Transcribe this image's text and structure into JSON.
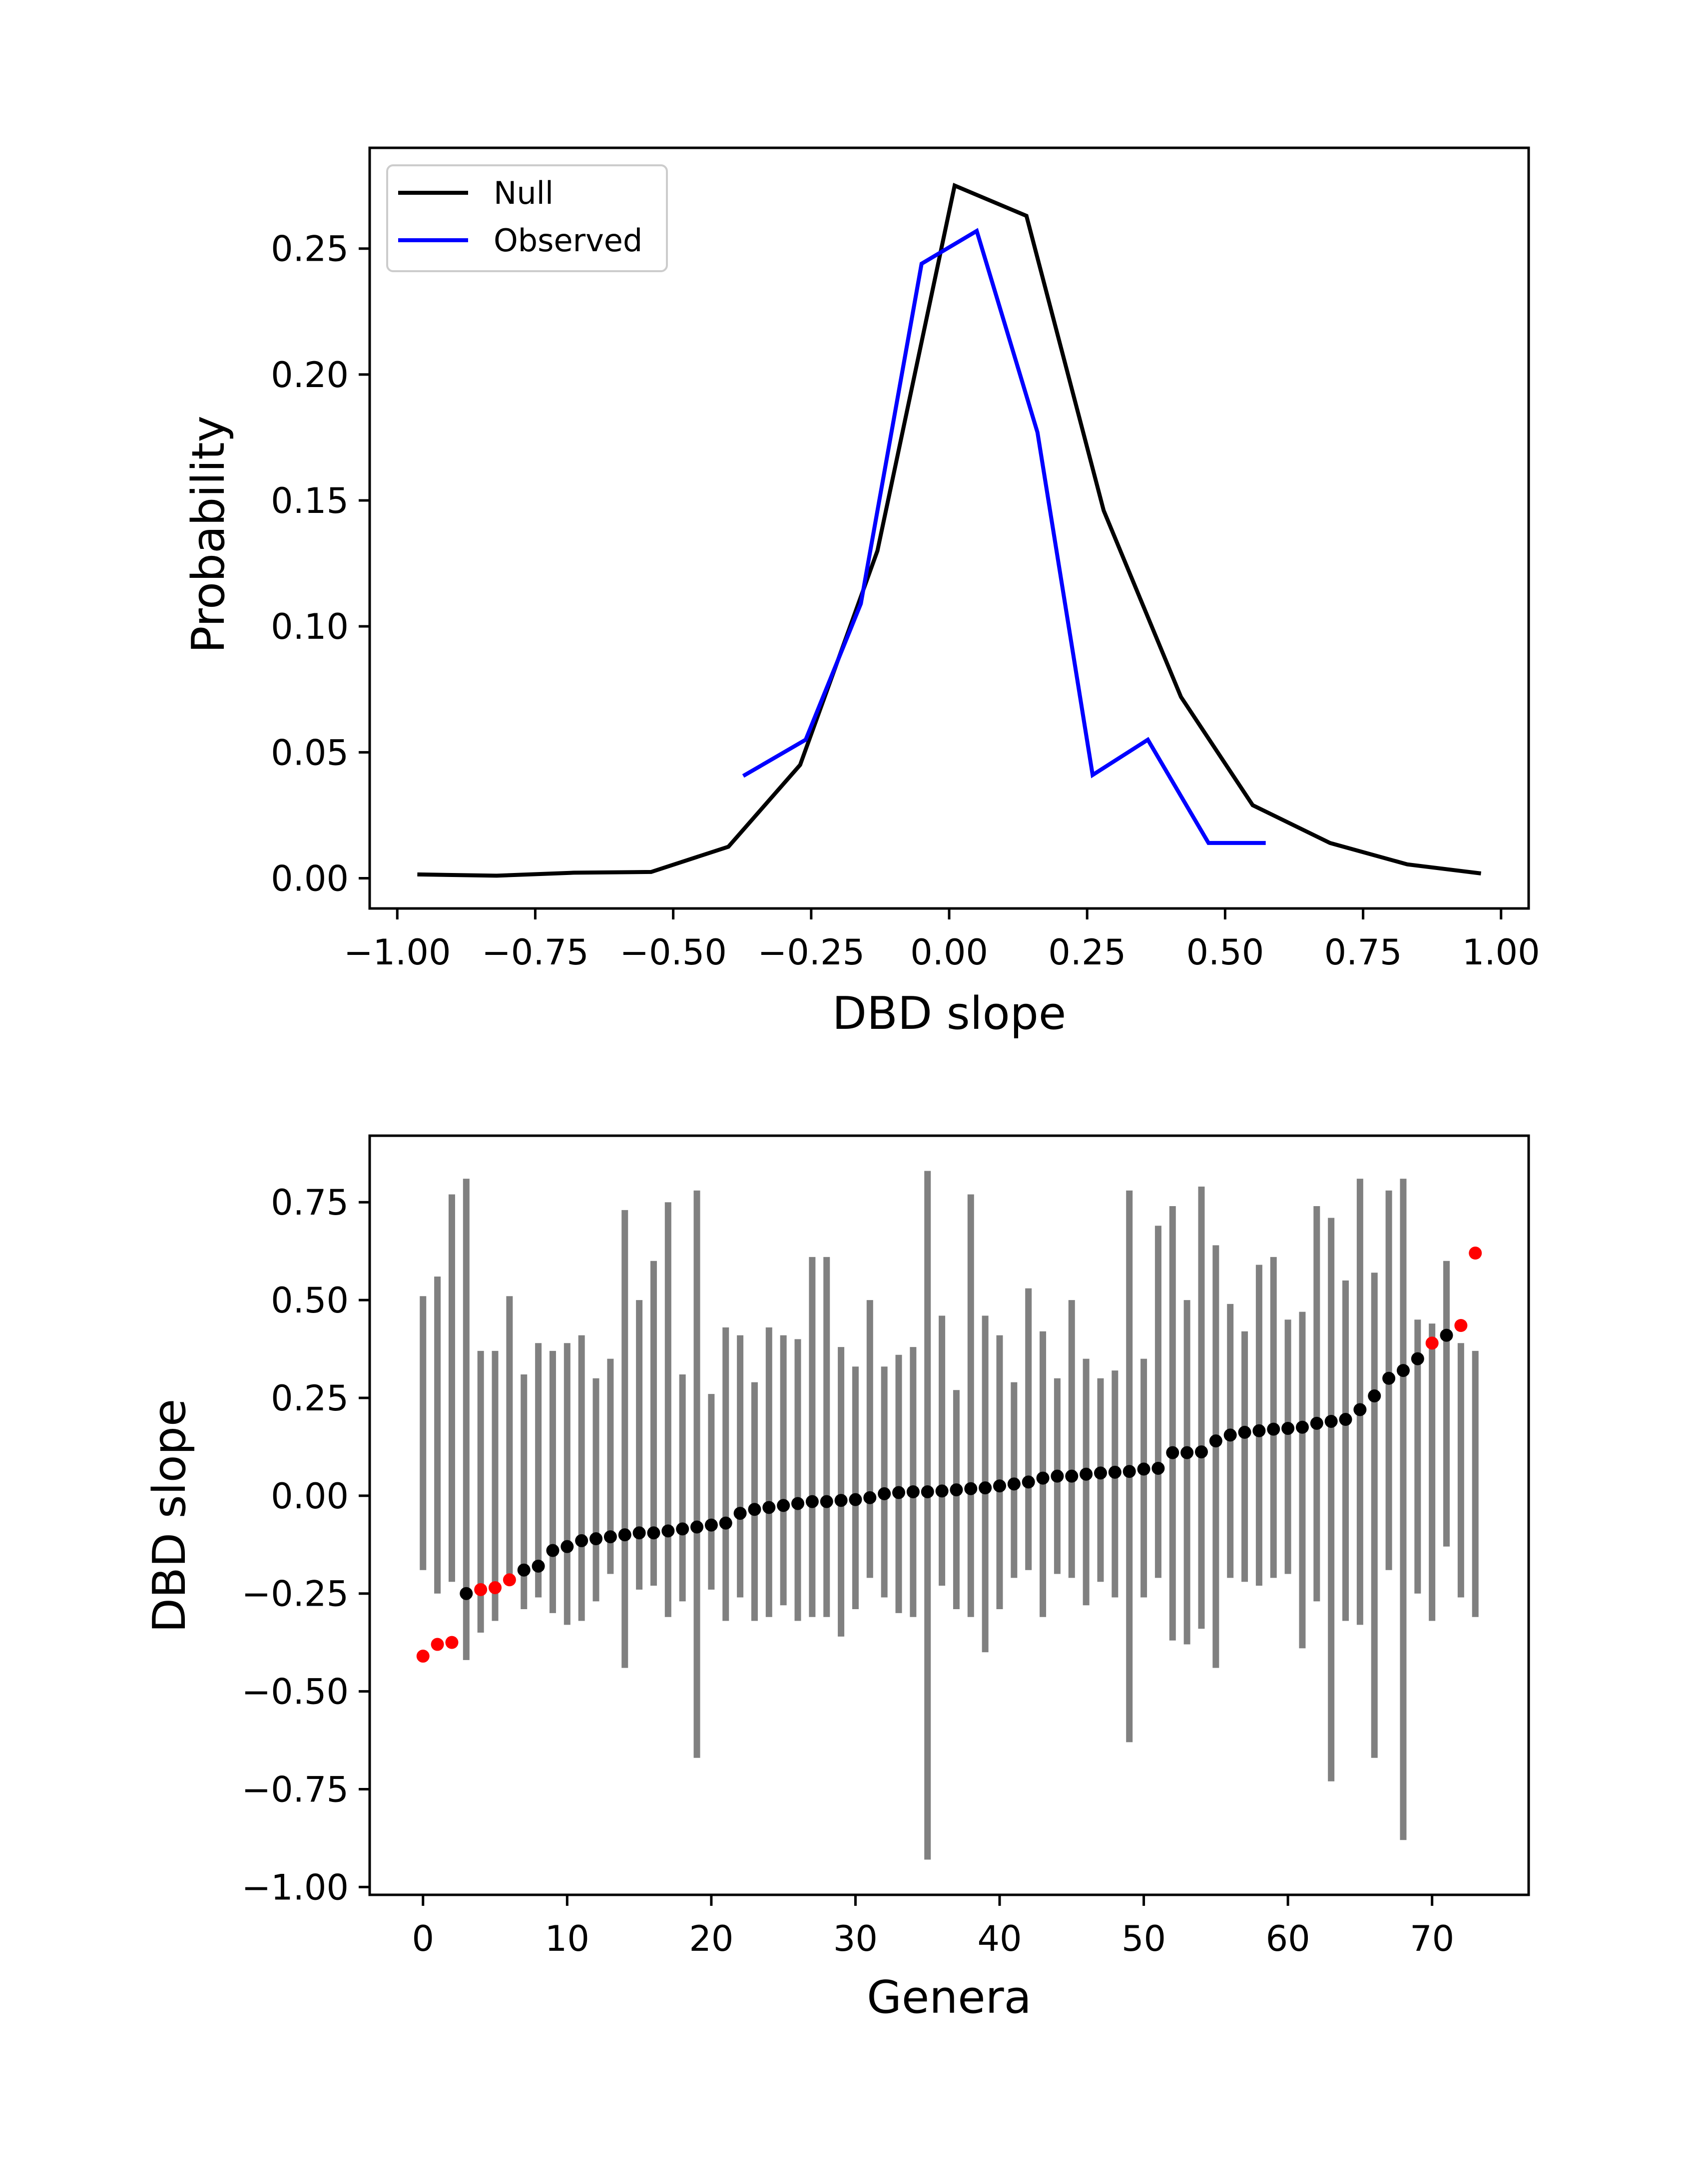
{
  "colors": {
    "null_line": "#000000",
    "observed_line": "#0000ff",
    "error_bar": "#808080",
    "point_default": "#000000",
    "point_significant": "#ff0000"
  },
  "chart_data": [
    {
      "type": "line",
      "xlabel": "DBD slope",
      "ylabel": "Probability",
      "xlim": [
        -1.05,
        1.05
      ],
      "ylim": [
        -0.012,
        0.29
      ],
      "xticks": [
        -1.0,
        -0.75,
        -0.5,
        -0.25,
        0.0,
        0.25,
        0.5,
        0.75,
        1.0
      ],
      "xtick_labels": [
        "−1.00",
        "−0.75",
        "−0.50",
        "−0.25",
        "0.00",
        "0.25",
        "0.50",
        "0.75",
        "1.00"
      ],
      "yticks": [
        0.0,
        0.05,
        0.1,
        0.15,
        0.2,
        0.25
      ],
      "ytick_labels": [
        "0.00",
        "0.05",
        "0.10",
        "0.15",
        "0.20",
        "0.25"
      ],
      "legend_position": "upper-left",
      "series": [
        {
          "name": "Null",
          "x": [
            -0.96,
            -0.82,
            -0.68,
            -0.54,
            -0.4,
            -0.27,
            -0.13,
            0.01,
            0.14,
            0.28,
            0.42,
            0.55,
            0.69,
            0.83,
            0.96
          ],
          "y": [
            0.0015,
            0.001,
            0.0022,
            0.0025,
            0.0125,
            0.045,
            0.13,
            0.275,
            0.263,
            0.146,
            0.072,
            0.029,
            0.014,
            0.0055,
            0.002
          ]
        },
        {
          "name": "Observed",
          "x": [
            -0.37,
            -0.26,
            -0.16,
            -0.05,
            0.05,
            0.16,
            0.26,
            0.36,
            0.47,
            0.57
          ],
          "y": [
            0.041,
            0.055,
            0.109,
            0.244,
            0.257,
            0.177,
            0.041,
            0.055,
            0.014,
            0.014
          ]
        }
      ]
    },
    {
      "type": "scatter",
      "xlabel": "Genera",
      "ylabel": "DBD slope",
      "xlim": [
        -3.7,
        76.7
      ],
      "ylim": [
        -1.02,
        0.92
      ],
      "xticks": [
        0,
        10,
        20,
        30,
        40,
        50,
        60,
        70
      ],
      "xtick_labels": [
        "0",
        "10",
        "20",
        "30",
        "40",
        "50",
        "60",
        "70"
      ],
      "yticks": [
        -1.0,
        -0.75,
        -0.5,
        -0.25,
        0.0,
        0.25,
        0.5,
        0.75
      ],
      "ytick_labels": [
        "−1.00",
        "−0.75",
        "−0.50",
        "−0.25",
        "0.00",
        "0.25",
        "0.50",
        "0.75"
      ],
      "points": [
        {
          "x": 0,
          "y": -0.41,
          "lo": -0.19,
          "hi": 0.51,
          "sig": true
        },
        {
          "x": 1,
          "y": -0.38,
          "lo": -0.25,
          "hi": 0.56,
          "sig": true
        },
        {
          "x": 2,
          "y": -0.375,
          "lo": -0.22,
          "hi": 0.77,
          "sig": true
        },
        {
          "x": 3,
          "y": -0.25,
          "lo": -0.42,
          "hi": 0.81,
          "sig": false
        },
        {
          "x": 4,
          "y": -0.24,
          "lo": -0.35,
          "hi": 0.37,
          "sig": true
        },
        {
          "x": 5,
          "y": -0.235,
          "lo": -0.32,
          "hi": 0.37,
          "sig": true
        },
        {
          "x": 6,
          "y": -0.215,
          "lo": -0.2,
          "hi": 0.51,
          "sig": true
        },
        {
          "x": 7,
          "y": -0.19,
          "lo": -0.29,
          "hi": 0.31,
          "sig": false
        },
        {
          "x": 8,
          "y": -0.18,
          "lo": -0.26,
          "hi": 0.39,
          "sig": false
        },
        {
          "x": 9,
          "y": -0.14,
          "lo": -0.3,
          "hi": 0.37,
          "sig": false
        },
        {
          "x": 10,
          "y": -0.13,
          "lo": -0.33,
          "hi": 0.39,
          "sig": false
        },
        {
          "x": 11,
          "y": -0.115,
          "lo": -0.32,
          "hi": 0.41,
          "sig": false
        },
        {
          "x": 12,
          "y": -0.11,
          "lo": -0.27,
          "hi": 0.3,
          "sig": false
        },
        {
          "x": 13,
          "y": -0.105,
          "lo": -0.2,
          "hi": 0.35,
          "sig": false
        },
        {
          "x": 14,
          "y": -0.1,
          "lo": -0.44,
          "hi": 0.73,
          "sig": false
        },
        {
          "x": 15,
          "y": -0.095,
          "lo": -0.24,
          "hi": 0.5,
          "sig": false
        },
        {
          "x": 16,
          "y": -0.095,
          "lo": -0.23,
          "hi": 0.6,
          "sig": false
        },
        {
          "x": 17,
          "y": -0.09,
          "lo": -0.31,
          "hi": 0.75,
          "sig": false
        },
        {
          "x": 18,
          "y": -0.085,
          "lo": -0.27,
          "hi": 0.31,
          "sig": false
        },
        {
          "x": 19,
          "y": -0.08,
          "lo": -0.67,
          "hi": 0.78,
          "sig": false
        },
        {
          "x": 20,
          "y": -0.075,
          "lo": -0.24,
          "hi": 0.26,
          "sig": false
        },
        {
          "x": 21,
          "y": -0.07,
          "lo": -0.32,
          "hi": 0.43,
          "sig": false
        },
        {
          "x": 22,
          "y": -0.045,
          "lo": -0.26,
          "hi": 0.41,
          "sig": false
        },
        {
          "x": 23,
          "y": -0.035,
          "lo": -0.32,
          "hi": 0.29,
          "sig": false
        },
        {
          "x": 24,
          "y": -0.03,
          "lo": -0.31,
          "hi": 0.43,
          "sig": false
        },
        {
          "x": 25,
          "y": -0.025,
          "lo": -0.28,
          "hi": 0.41,
          "sig": false
        },
        {
          "x": 26,
          "y": -0.02,
          "lo": -0.32,
          "hi": 0.4,
          "sig": false
        },
        {
          "x": 27,
          "y": -0.015,
          "lo": -0.31,
          "hi": 0.61,
          "sig": false
        },
        {
          "x": 28,
          "y": -0.015,
          "lo": -0.31,
          "hi": 0.61,
          "sig": false
        },
        {
          "x": 29,
          "y": -0.012,
          "lo": -0.36,
          "hi": 0.38,
          "sig": false
        },
        {
          "x": 30,
          "y": -0.01,
          "lo": -0.29,
          "hi": 0.33,
          "sig": false
        },
        {
          "x": 31,
          "y": -0.005,
          "lo": -0.21,
          "hi": 0.5,
          "sig": false
        },
        {
          "x": 32,
          "y": 0.005,
          "lo": -0.26,
          "hi": 0.33,
          "sig": false
        },
        {
          "x": 33,
          "y": 0.008,
          "lo": -0.3,
          "hi": 0.36,
          "sig": false
        },
        {
          "x": 34,
          "y": 0.01,
          "lo": -0.31,
          "hi": 0.38,
          "sig": false
        },
        {
          "x": 35,
          "y": 0.01,
          "lo": -0.93,
          "hi": 0.83,
          "sig": false
        },
        {
          "x": 36,
          "y": 0.012,
          "lo": -0.23,
          "hi": 0.46,
          "sig": false
        },
        {
          "x": 37,
          "y": 0.015,
          "lo": -0.29,
          "hi": 0.27,
          "sig": false
        },
        {
          "x": 38,
          "y": 0.018,
          "lo": -0.31,
          "hi": 0.77,
          "sig": false
        },
        {
          "x": 39,
          "y": 0.02,
          "lo": -0.4,
          "hi": 0.46,
          "sig": false
        },
        {
          "x": 40,
          "y": 0.025,
          "lo": -0.29,
          "hi": 0.41,
          "sig": false
        },
        {
          "x": 41,
          "y": 0.03,
          "lo": -0.21,
          "hi": 0.29,
          "sig": false
        },
        {
          "x": 42,
          "y": 0.035,
          "lo": -0.19,
          "hi": 0.53,
          "sig": false
        },
        {
          "x": 43,
          "y": 0.045,
          "lo": -0.31,
          "hi": 0.42,
          "sig": false
        },
        {
          "x": 44,
          "y": 0.05,
          "lo": -0.2,
          "hi": 0.3,
          "sig": false
        },
        {
          "x": 45,
          "y": 0.05,
          "lo": -0.21,
          "hi": 0.5,
          "sig": false
        },
        {
          "x": 46,
          "y": 0.055,
          "lo": -0.28,
          "hi": 0.35,
          "sig": false
        },
        {
          "x": 47,
          "y": 0.058,
          "lo": -0.22,
          "hi": 0.3,
          "sig": false
        },
        {
          "x": 48,
          "y": 0.06,
          "lo": -0.26,
          "hi": 0.32,
          "sig": false
        },
        {
          "x": 49,
          "y": 0.062,
          "lo": -0.63,
          "hi": 0.78,
          "sig": false
        },
        {
          "x": 50,
          "y": 0.068,
          "lo": -0.26,
          "hi": 0.35,
          "sig": false
        },
        {
          "x": 51,
          "y": 0.07,
          "lo": -0.21,
          "hi": 0.69,
          "sig": false
        },
        {
          "x": 52,
          "y": 0.11,
          "lo": -0.37,
          "hi": 0.74,
          "sig": false
        },
        {
          "x": 53,
          "y": 0.11,
          "lo": -0.38,
          "hi": 0.5,
          "sig": false
        },
        {
          "x": 54,
          "y": 0.112,
          "lo": -0.34,
          "hi": 0.79,
          "sig": false
        },
        {
          "x": 55,
          "y": 0.14,
          "lo": -0.44,
          "hi": 0.64,
          "sig": false
        },
        {
          "x": 56,
          "y": 0.155,
          "lo": -0.21,
          "hi": 0.49,
          "sig": false
        },
        {
          "x": 57,
          "y": 0.162,
          "lo": -0.22,
          "hi": 0.42,
          "sig": false
        },
        {
          "x": 58,
          "y": 0.166,
          "lo": -0.23,
          "hi": 0.59,
          "sig": false
        },
        {
          "x": 59,
          "y": 0.17,
          "lo": -0.21,
          "hi": 0.61,
          "sig": false
        },
        {
          "x": 60,
          "y": 0.172,
          "lo": -0.2,
          "hi": 0.45,
          "sig": false
        },
        {
          "x": 61,
          "y": 0.175,
          "lo": -0.39,
          "hi": 0.47,
          "sig": false
        },
        {
          "x": 62,
          "y": 0.185,
          "lo": -0.27,
          "hi": 0.74,
          "sig": false
        },
        {
          "x": 63,
          "y": 0.19,
          "lo": -0.73,
          "hi": 0.71,
          "sig": false
        },
        {
          "x": 64,
          "y": 0.195,
          "lo": -0.32,
          "hi": 0.55,
          "sig": false
        },
        {
          "x": 65,
          "y": 0.22,
          "lo": -0.33,
          "hi": 0.81,
          "sig": false
        },
        {
          "x": 66,
          "y": 0.255,
          "lo": -0.67,
          "hi": 0.57,
          "sig": false
        },
        {
          "x": 67,
          "y": 0.3,
          "lo": -0.19,
          "hi": 0.78,
          "sig": false
        },
        {
          "x": 68,
          "y": 0.32,
          "lo": -0.88,
          "hi": 0.81,
          "sig": false
        },
        {
          "x": 69,
          "y": 0.35,
          "lo": -0.25,
          "hi": 0.45,
          "sig": false
        },
        {
          "x": 70,
          "y": 0.39,
          "lo": -0.32,
          "hi": 0.44,
          "sig": true
        },
        {
          "x": 71,
          "y": 0.41,
          "lo": -0.13,
          "hi": 0.6,
          "sig": false
        },
        {
          "x": 72,
          "y": 0.435,
          "lo": -0.26,
          "hi": 0.39,
          "sig": true
        },
        {
          "x": 73,
          "y": 0.62,
          "lo": -0.31,
          "hi": 0.37,
          "sig": true
        }
      ]
    }
  ]
}
